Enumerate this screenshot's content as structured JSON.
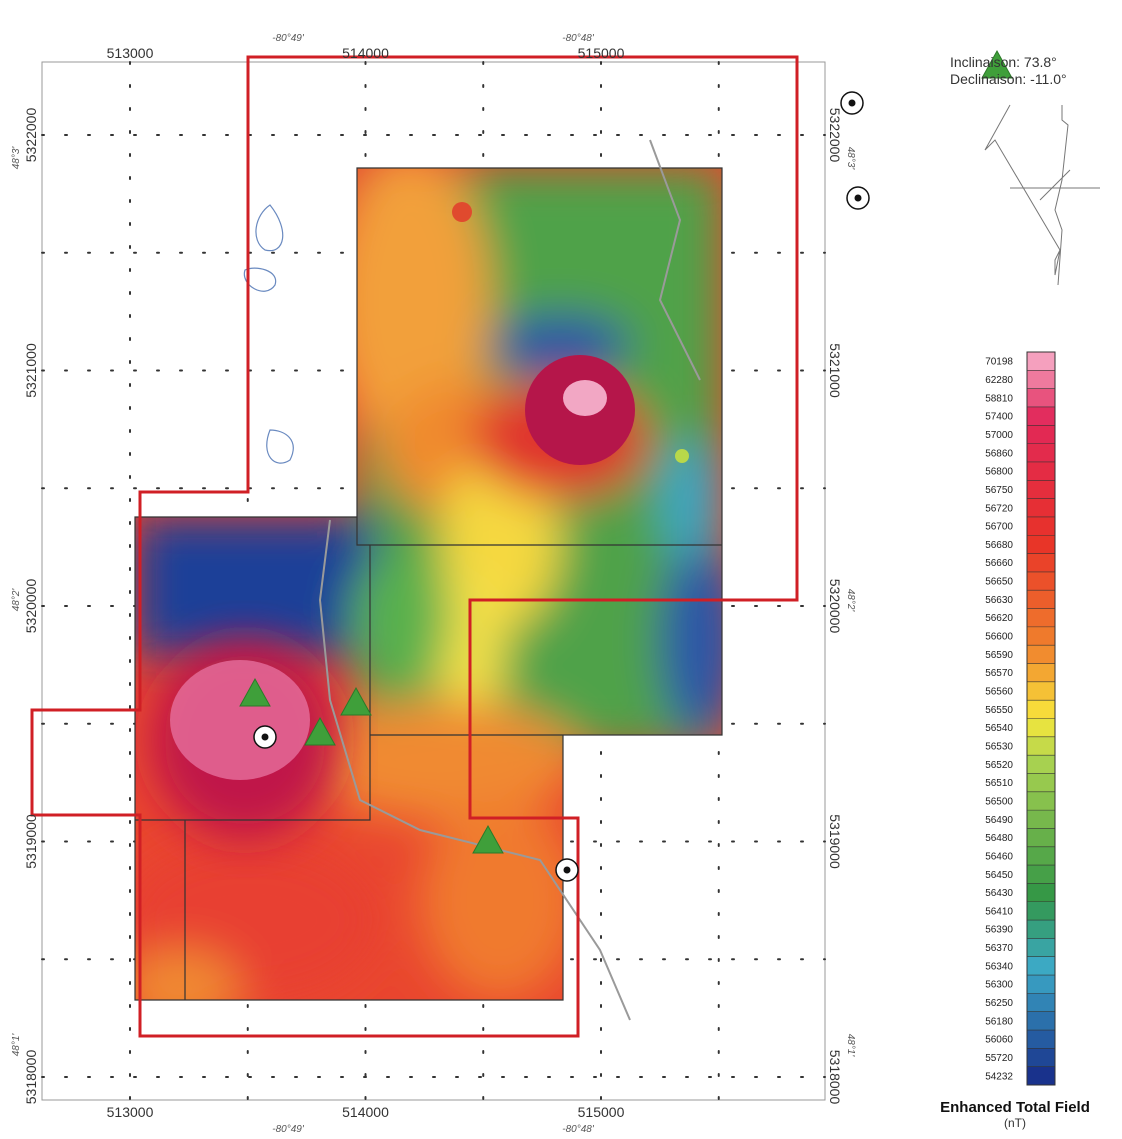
{
  "map": {
    "easting_labels": [
      513000,
      514000,
      515000
    ],
    "northing_labels": [
      5322000,
      5321000,
      5320000,
      5319000,
      5318000
    ],
    "longitude_labels": [
      "-80°49'",
      "-80°48'"
    ],
    "latitude_labels": [
      "48°3'",
      "48°2'",
      "48°1'"
    ],
    "inclination": "Inclinaison: 73.8°",
    "declination": "Declinaison: -11.0°"
  },
  "legend": {
    "levels": [
      70198,
      62280,
      58810,
      57400,
      57000,
      56860,
      56800,
      56750,
      56720,
      56700,
      56680,
      56660,
      56650,
      56630,
      56620,
      56600,
      56590,
      56570,
      56560,
      56550,
      56540,
      56530,
      56520,
      56510,
      56500,
      56490,
      56480,
      56460,
      56450,
      56430,
      56410,
      56390,
      56370,
      56340,
      56300,
      56250,
      56180,
      56060,
      55720,
      54232
    ],
    "title": "Enhanced Total Field",
    "unit": "(nT)"
  }
}
